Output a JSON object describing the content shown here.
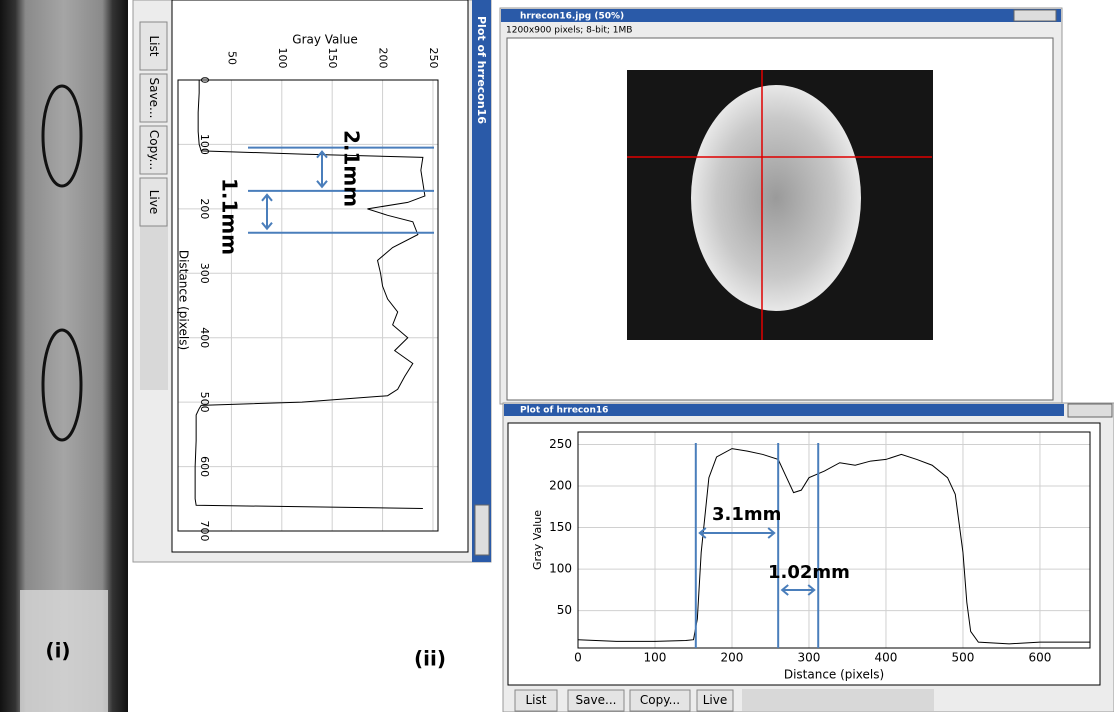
{
  "panel_labels": [
    "(i)",
    "(ii)"
  ],
  "image_window": {
    "title": "hrrecon16.jpg (50%)",
    "info": "1200x900 pixels; 8-bit; 1MB"
  },
  "buttons": [
    "List",
    "Save...",
    "Copy...",
    "Live"
  ],
  "chart_data": [
    {
      "type": "line",
      "rotated": true,
      "title": "Plot of hrrecon16",
      "xlabel": "Distance (pixels)",
      "ylabel": "Gray Value",
      "x": [
        0,
        20,
        50,
        80,
        100,
        110,
        115,
        120,
        140,
        160,
        180,
        190,
        200,
        210,
        220,
        240,
        260,
        280,
        300,
        320,
        340,
        360,
        380,
        400,
        420,
        440,
        460,
        480,
        490,
        500,
        505,
        510,
        520,
        560,
        600,
        650,
        660,
        665
      ],
      "values": [
        18,
        18,
        17,
        17,
        18,
        20,
        120,
        240,
        238,
        240,
        242,
        225,
        185,
        205,
        230,
        235,
        210,
        195,
        198,
        200,
        205,
        215,
        210,
        225,
        212,
        230,
        222,
        215,
        205,
        120,
        20,
        18,
        15,
        15,
        14,
        14,
        15,
        240
      ],
      "color": "#000000",
      "xlim": [
        0,
        700
      ],
      "ylim": [
        -3,
        255
      ],
      "xticks": [
        0,
        100,
        200,
        300,
        400,
        500,
        600,
        700
      ],
      "yticks": [
        50,
        100,
        150,
        200,
        250
      ],
      "grid": true,
      "markers": [
        105,
        172,
        237
      ],
      "annotations": [
        "2.1mm",
        "1.1mm"
      ],
      "marker_color": "#4a7ebb"
    },
    {
      "type": "line",
      "rotated": false,
      "title": "Plot of hrrecon16",
      "xlabel": "Distance (pixels)",
      "ylabel": "Gray Value",
      "x": [
        0,
        50,
        100,
        140,
        150,
        155,
        160,
        170,
        180,
        200,
        220,
        240,
        260,
        270,
        280,
        290,
        300,
        320,
        340,
        360,
        380,
        400,
        420,
        440,
        460,
        480,
        490,
        500,
        505,
        510,
        520,
        560,
        600,
        665
      ],
      "values": [
        15,
        13,
        13,
        14,
        15,
        40,
        120,
        210,
        235,
        245,
        242,
        238,
        232,
        212,
        192,
        195,
        210,
        218,
        228,
        225,
        230,
        232,
        238,
        232,
        225,
        210,
        190,
        120,
        60,
        25,
        12,
        10,
        12,
        12
      ],
      "color": "#000000",
      "xlim": [
        0,
        665
      ],
      "ylim": [
        5,
        265
      ],
      "xticks": [
        0,
        100,
        200,
        300,
        400,
        500,
        600
      ],
      "yticks": [
        50,
        100,
        150,
        200,
        250
      ],
      "grid": true,
      "markers": [
        153,
        260,
        312
      ],
      "annotations": [
        "3.1mm",
        "1.02mm"
      ],
      "marker_color": "#4a7ebb"
    }
  ]
}
